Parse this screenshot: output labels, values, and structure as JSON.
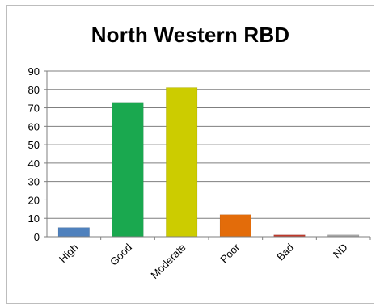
{
  "chart_data": {
    "type": "bar",
    "title": "North Western RBD",
    "xlabel": "",
    "ylabel": "",
    "categories": [
      "High",
      "Good",
      "Moderate",
      "Poor",
      "Bad",
      "ND"
    ],
    "values": [
      5,
      73,
      81,
      12,
      1,
      1
    ],
    "colors": [
      "#4f81bd",
      "#1aa84f",
      "#cccc00",
      "#e36c0a",
      "#c0392b",
      "#a6a6a6"
    ],
    "ylim": [
      0,
      90
    ],
    "yticks": [
      0,
      10,
      20,
      30,
      40,
      50,
      60,
      70,
      80,
      90
    ],
    "grid": true,
    "legend": "none"
  }
}
